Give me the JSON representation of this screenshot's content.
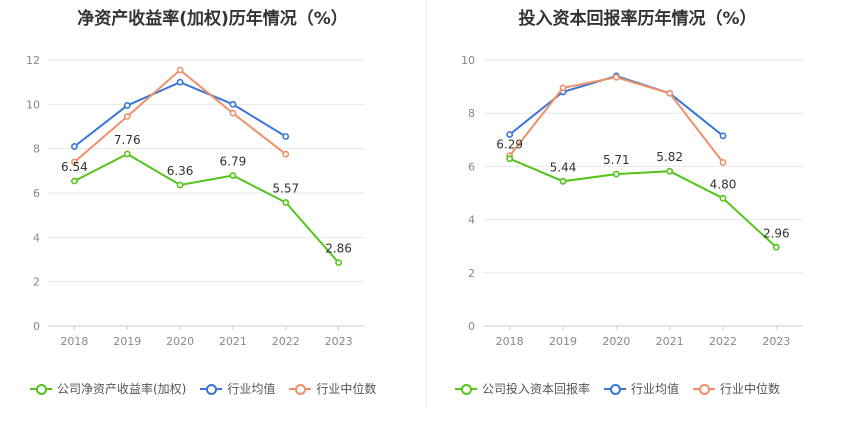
{
  "colors": {
    "company": "#52c41a",
    "industry_avg": "#3a75d8",
    "industry_median": "#f0906a",
    "grid": "#e8e8e8",
    "axis_text": "#888888",
    "label_text": "#333333"
  },
  "chart_data": [
    {
      "type": "line",
      "title": "净资产收益率(加权)历年情况（%）",
      "categories": [
        "2018",
        "2019",
        "2020",
        "2021",
        "2022",
        "2023"
      ],
      "ylim": [
        0,
        12
      ],
      "yticks": [
        0,
        2,
        4,
        6,
        8,
        10,
        12
      ],
      "grid": true,
      "legend_position": "bottom-left",
      "series": [
        {
          "name": "公司净资产收益率(加权)",
          "color_key": "company",
          "show_labels": true,
          "values": [
            6.54,
            7.76,
            6.36,
            6.79,
            5.57,
            2.86
          ],
          "labels": [
            "6.54",
            "7.76",
            "6.36",
            "6.79",
            "5.57",
            "2.86"
          ]
        },
        {
          "name": "行业均值",
          "color_key": "industry_avg",
          "show_labels": false,
          "values": [
            8.1,
            9.95,
            11.0,
            10.0,
            8.55,
            null
          ]
        },
        {
          "name": "行业中位数",
          "color_key": "industry_median",
          "show_labels": false,
          "values": [
            7.4,
            9.45,
            11.55,
            9.6,
            7.75,
            null
          ]
        }
      ]
    },
    {
      "type": "line",
      "title": "投入资本回报率历年情况（%）",
      "categories": [
        "2018",
        "2019",
        "2020",
        "2021",
        "2022",
        "2023"
      ],
      "ylim": [
        0,
        10
      ],
      "yticks": [
        0,
        2,
        4,
        6,
        8,
        10
      ],
      "grid": true,
      "legend_position": "bottom-left",
      "series": [
        {
          "name": "公司投入资本回报率",
          "color_key": "company",
          "show_labels": true,
          "values": [
            6.29,
            5.44,
            5.71,
            5.82,
            4.8,
            2.96
          ],
          "labels": [
            "6.29",
            "5.44",
            "5.71",
            "5.82",
            "4.80",
            "2.96"
          ]
        },
        {
          "name": "行业均值",
          "color_key": "industry_avg",
          "show_labels": false,
          "values": [
            7.2,
            8.8,
            9.4,
            8.75,
            7.15,
            null
          ]
        },
        {
          "name": "行业中位数",
          "color_key": "industry_median",
          "show_labels": false,
          "values": [
            6.4,
            8.95,
            9.35,
            8.75,
            6.15,
            null
          ]
        }
      ]
    }
  ]
}
